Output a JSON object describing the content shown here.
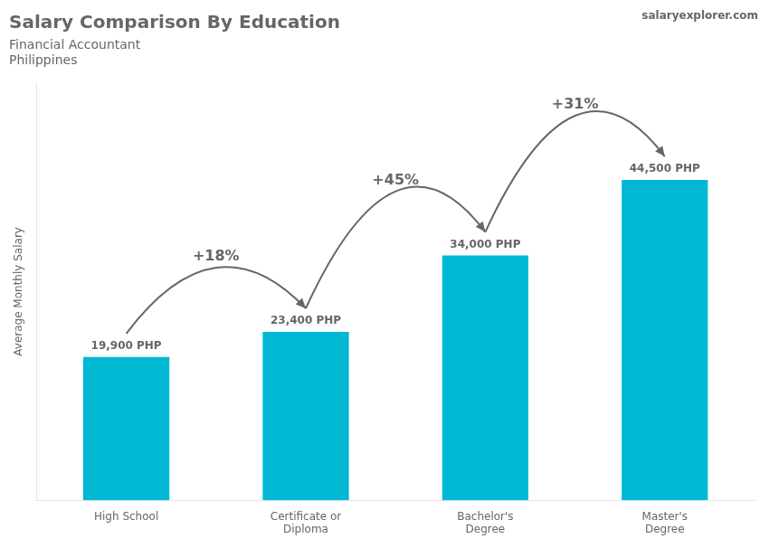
{
  "chart_data": {
    "type": "bar",
    "title": "Salary Comparison By Education",
    "subtitle": [
      "Financial Accountant",
      "Philippines"
    ],
    "source": "salaryexplorer.com",
    "ylabel": "Average Monthly Salary",
    "categories": [
      "High School",
      "Certificate or\nDiploma",
      "Bachelor's\nDegree",
      "Master's\nDegree"
    ],
    "values": [
      19900,
      23400,
      34000,
      44500
    ],
    "value_labels": [
      "19,900 PHP",
      "23,400 PHP",
      "34,000 PHP",
      "44,500 PHP"
    ],
    "data_labels": true,
    "annotations": [
      "+18%",
      "+45%",
      "+31%"
    ],
    "color": "#00b8d4",
    "ylim": [
      0,
      58000
    ],
    "tick_labels": "x",
    "grid": false,
    "legend": false
  }
}
